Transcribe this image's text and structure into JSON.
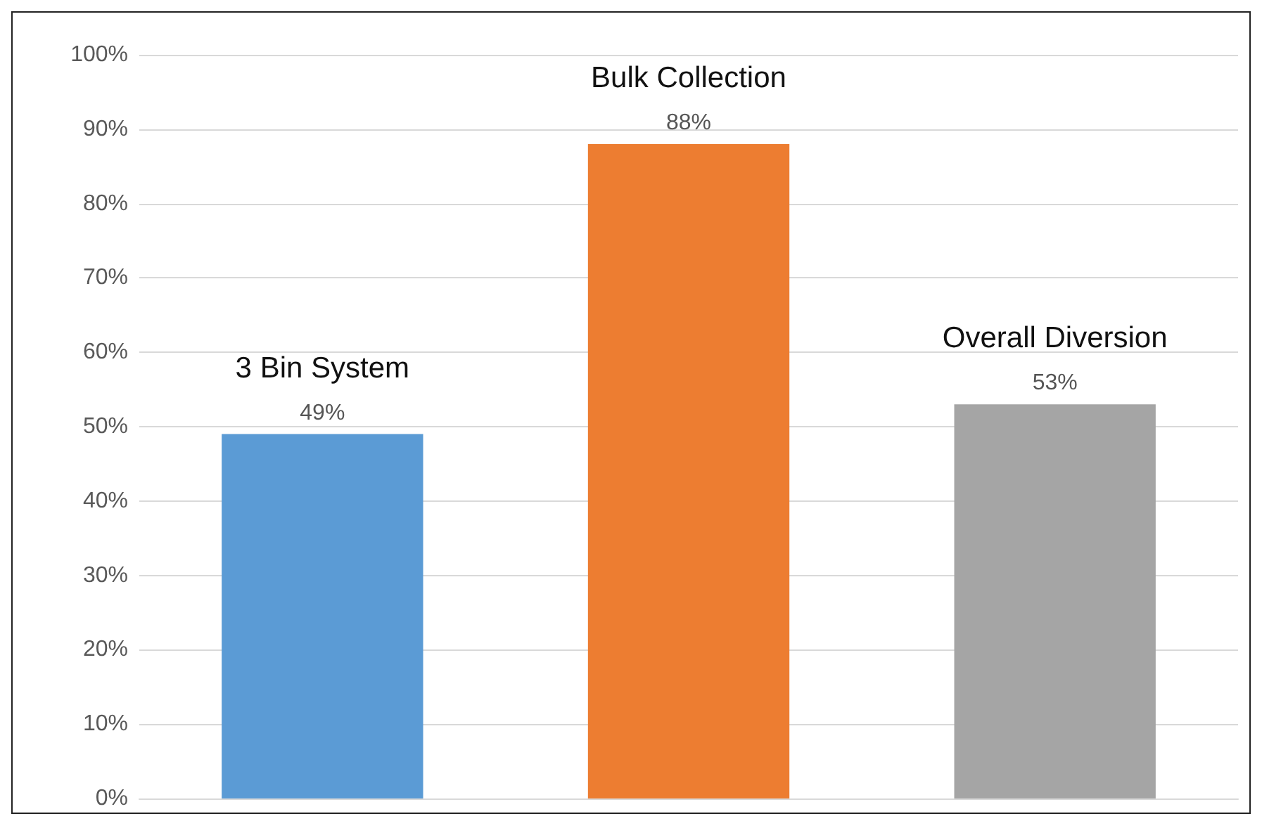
{
  "chart_data": {
    "type": "bar",
    "categories": [
      "3 Bin System",
      "Bulk Collection",
      "Overall Diversion"
    ],
    "values": [
      49,
      88,
      53
    ],
    "colors": [
      "#5b9bd5",
      "#ed7d31",
      "#a5a5a5"
    ],
    "value_labels": [
      "49%",
      "88%",
      "53%"
    ],
    "ylim": [
      0,
      100
    ],
    "yticks": [
      {
        "value": 0,
        "label": "0%"
      },
      {
        "value": 10,
        "label": "10%"
      },
      {
        "value": 20,
        "label": "20%"
      },
      {
        "value": 30,
        "label": "30%"
      },
      {
        "value": 40,
        "label": "40%"
      },
      {
        "value": 50,
        "label": "50%"
      },
      {
        "value": 60,
        "label": "60%"
      },
      {
        "value": 70,
        "label": "70%"
      },
      {
        "value": 80,
        "label": "80%"
      },
      {
        "value": 90,
        "label": "90%"
      },
      {
        "value": 100,
        "label": "100%"
      }
    ],
    "grid": "y",
    "tick_labels": "y"
  }
}
